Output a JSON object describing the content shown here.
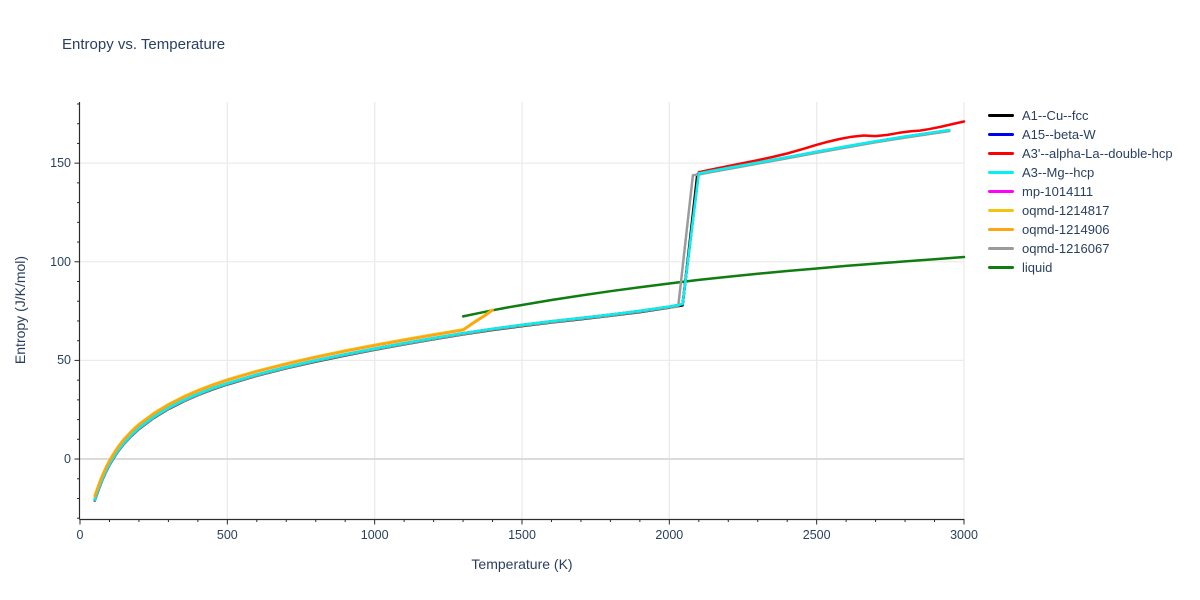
{
  "title": "Entropy vs. Temperature",
  "colors": {
    "text": "#2a3f5f",
    "axis": "#2b2b2b",
    "grid": "#ebebeb",
    "zeroline": "#d6d6d6",
    "background": "#ffffff"
  },
  "chart_data": {
    "type": "line",
    "title": "Entropy vs. Temperature",
    "xlabel": "Temperature (K)",
    "ylabel": "Entropy (J/K/mol)",
    "xlim": [
      0,
      3000
    ],
    "ylim": [
      -30.4,
      181
    ],
    "grid": true,
    "legend_position": "right-outside",
    "x_axis": {
      "major_ticks": [
        0,
        500,
        1000,
        1500,
        2000,
        2500,
        3000
      ],
      "tick_labels": [
        "0",
        "500",
        "1000",
        "1500",
        "2000",
        "2500",
        "3000"
      ],
      "minor_step": 100
    },
    "y_axis": {
      "major_ticks": [
        0,
        50,
        100,
        150
      ],
      "tick_labels": [
        "0",
        "50",
        "100",
        "150"
      ],
      "minor_step": 10
    },
    "base_curve": {
      "T": [
        50,
        60,
        70,
        80,
        90,
        100,
        110,
        130,
        150,
        175,
        200,
        250,
        300,
        350,
        400,
        450,
        500,
        600,
        700,
        800,
        900,
        1000,
        1100,
        1200,
        1300,
        1400,
        1500,
        1600,
        1700,
        1800,
        1900,
        2000,
        2045
      ],
      "S": [
        -20.5,
        -16.2,
        -12.2,
        -8.6,
        -5.4,
        -2.5,
        0,
        4.6,
        8.4,
        12.4,
        15.8,
        21.4,
        25.9,
        29.7,
        33,
        35.9,
        38.4,
        42.8,
        46.6,
        50,
        53.1,
        56,
        58.7,
        61.3,
        63.8,
        66,
        68,
        69.8,
        71.5,
        73.2,
        75.1,
        77.3,
        78.5
      ]
    },
    "post_curve": {
      "T": [
        2100,
        2150,
        2200,
        2300,
        2400,
        2500,
        2600,
        2700,
        2800,
        2900,
        2950
      ],
      "S": [
        144.8,
        146.2,
        147.6,
        150.3,
        153,
        155.8,
        158.5,
        161.1,
        163.5,
        165.7,
        166.8
      ]
    },
    "series": [
      {
        "name": "A1--Cu--fcc",
        "color": "#000000",
        "pre_offset": -0.6,
        "pre_until": 2045,
        "mid": [
          [
            2095,
            144.3
          ]
        ],
        "post_offset": -0.4,
        "post_until": 2950
      },
      {
        "name": "A15--beta-W",
        "color": "#0000f0",
        "pre_offset": -0.2,
        "pre_until": 2045,
        "mid": [
          [
            2098,
            144.6
          ]
        ],
        "post_offset": -0.1,
        "post_until": 2950
      },
      {
        "name": "A3'--alpha-La--double-hcp",
        "color": "#ff0000",
        "pre_offset": 0,
        "pre_until": 2045,
        "pts": [
          [
            2100,
            145.4
          ],
          [
            2150,
            147.0
          ],
          [
            2200,
            148.5
          ],
          [
            2250,
            150.0
          ],
          [
            2300,
            151.5
          ],
          [
            2350,
            153.1
          ],
          [
            2400,
            154.9
          ],
          [
            2450,
            157.0
          ],
          [
            2500,
            159.3
          ],
          [
            2540,
            160.9
          ],
          [
            2580,
            162.3
          ],
          [
            2620,
            163.4
          ],
          [
            2660,
            164.0
          ],
          [
            2700,
            163.7
          ],
          [
            2740,
            164.3
          ],
          [
            2780,
            165.4
          ],
          [
            2820,
            166.2
          ],
          [
            2850,
            166.5
          ],
          [
            2880,
            167.2
          ],
          [
            2920,
            168.4
          ],
          [
            2960,
            169.8
          ],
          [
            3000,
            171.1
          ]
        ]
      },
      {
        "name": "A3--Mg--hcp",
        "color": "#00f2f2",
        "pre_offset": 0,
        "pre_until": 2045,
        "post_offset": 0,
        "post_until": 2950
      },
      {
        "name": "mp-1014111",
        "color": "#ff00ff",
        "pre_offset": -0.1,
        "pre_until": 2045,
        "mid": [
          [
            2099,
            144.7
          ]
        ],
        "post_offset": -0.05,
        "post_until": 2950
      },
      {
        "name": "oqmd-1214817",
        "color": "#f2c40e",
        "pre_offset": 1.9,
        "pre_until": 1330,
        "pts": [
          [
            1345,
            70.3
          ],
          [
            1370,
            72.6
          ],
          [
            1400,
            75.7
          ]
        ]
      },
      {
        "name": "oqmd-1214906",
        "color": "#ffa412",
        "pre_offset": 1.5,
        "pre_until": 1330,
        "pts": [
          [
            1345,
            69.9
          ],
          [
            1370,
            72.2
          ],
          [
            1400,
            75.4
          ]
        ]
      },
      {
        "name": "oqmd-1216067",
        "color": "#9b9b9b",
        "pre_offset": -0.45,
        "pre_until": 2025,
        "mid": [
          [
            2030,
            77.3
          ],
          [
            2080,
            143.9
          ]
        ],
        "post_offset": -0.55,
        "post_until": 2950
      },
      {
        "name": "liquid",
        "color": "#0f7d0f",
        "pts": [
          [
            1300,
            72.3
          ],
          [
            1350,
            73.9
          ],
          [
            1400,
            75.4
          ],
          [
            1450,
            76.8
          ],
          [
            1500,
            78.1
          ],
          [
            1600,
            80.6
          ],
          [
            1700,
            82.9
          ],
          [
            1800,
            85.1
          ],
          [
            1900,
            87.1
          ],
          [
            2000,
            89.0
          ],
          [
            2100,
            90.8
          ],
          [
            2200,
            92.4
          ],
          [
            2300,
            93.9
          ],
          [
            2400,
            95.3
          ],
          [
            2500,
            96.6
          ],
          [
            2600,
            97.9
          ],
          [
            2700,
            99.1
          ],
          [
            2800,
            100.2
          ],
          [
            2900,
            101.3
          ],
          [
            3000,
            102.4
          ]
        ]
      }
    ],
    "draw_order": [
      "liquid",
      "A15--beta-W",
      "mp-1014111",
      "A1--Cu--fcc",
      "oqmd-1216067",
      "A3'--alpha-La--double-hcp",
      "A3--Mg--hcp",
      "oqmd-1214817",
      "oqmd-1214906"
    ]
  },
  "legend": {
    "entries": [
      "A1--Cu--fcc",
      "A15--beta-W",
      "A3'--alpha-La--double-hcp",
      "A3--Mg--hcp",
      "mp-1014111",
      "oqmd-1214817",
      "oqmd-1214906",
      "oqmd-1216067",
      "liquid"
    ]
  }
}
